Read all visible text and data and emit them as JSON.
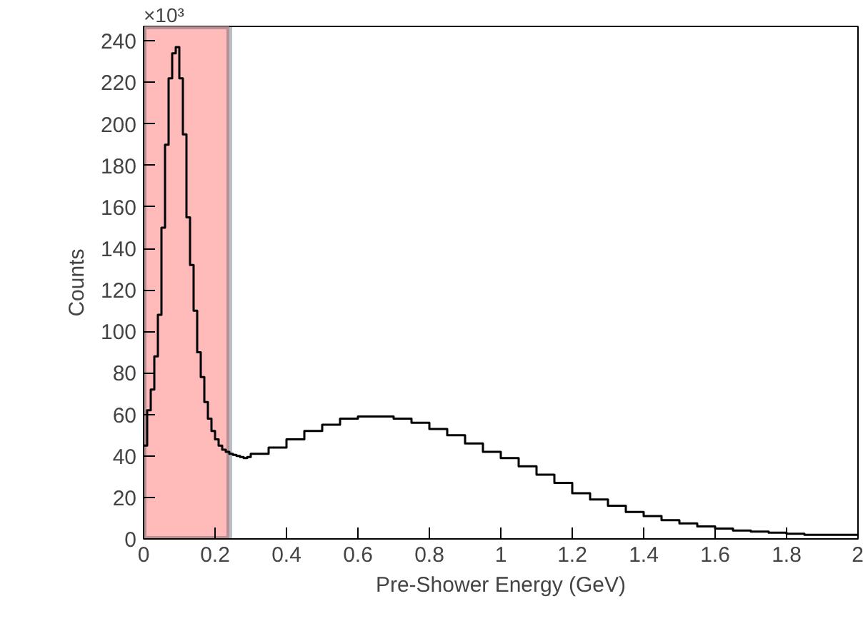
{
  "chart_data": {
    "type": "histogram",
    "xlabel": "Pre-Shower Energy (GeV)",
    "ylabel": "Counts",
    "annotations": [
      "×10³"
    ],
    "bins": [
      0,
      0.01,
      0.02,
      0.03,
      0.04,
      0.05,
      0.06,
      0.07,
      0.08,
      0.09,
      0.1,
      0.11,
      0.12,
      0.13,
      0.14,
      0.15,
      0.16,
      0.17,
      0.18,
      0.19,
      0.2,
      0.21,
      0.22,
      0.23,
      0.24,
      0.25,
      0.26,
      0.27,
      0.28,
      0.29,
      0.3,
      0.35,
      0.4,
      0.45,
      0.5,
      0.55,
      0.6,
      0.65,
      0.7,
      0.75,
      0.8,
      0.85,
      0.9,
      0.95,
      1.0,
      1.05,
      1.1,
      1.15,
      1.2,
      1.25,
      1.3,
      1.35,
      1.4,
      1.45,
      1.5,
      1.55,
      1.6,
      1.65,
      1.7,
      1.75,
      1.8,
      1.85,
      1.9,
      1.95,
      2.0
    ],
    "values": [
      45,
      62,
      72,
      88,
      108,
      150,
      190,
      222,
      234,
      237,
      222,
      195,
      155,
      132,
      110,
      90,
      78,
      66,
      58,
      52,
      48,
      45,
      43,
      42,
      41,
      40.5,
      40,
      39.5,
      39,
      39.5,
      41,
      44,
      48,
      52,
      55,
      58,
      59,
      59,
      58,
      56,
      53,
      50,
      46,
      42,
      39,
      35,
      31,
      27,
      22,
      19,
      16,
      13,
      11,
      9,
      7.5,
      6,
      5,
      4,
      3.5,
      3,
      2.5,
      2,
      2,
      2
    ],
    "color": "#000000",
    "xlim": [
      0,
      2
    ],
    "ylim": [
      0,
      247
    ],
    "xticks": [
      0,
      0.2,
      0.4,
      0.6,
      0.8,
      1,
      1.2,
      1.4,
      1.6,
      1.8,
      2
    ],
    "yticks": [
      0,
      20,
      40,
      60,
      80,
      100,
      120,
      140,
      160,
      180,
      200,
      220,
      240
    ],
    "bands": [
      {
        "axis": "x",
        "from": 0,
        "to": 0.24,
        "color": "#ffbaba"
      }
    ]
  }
}
